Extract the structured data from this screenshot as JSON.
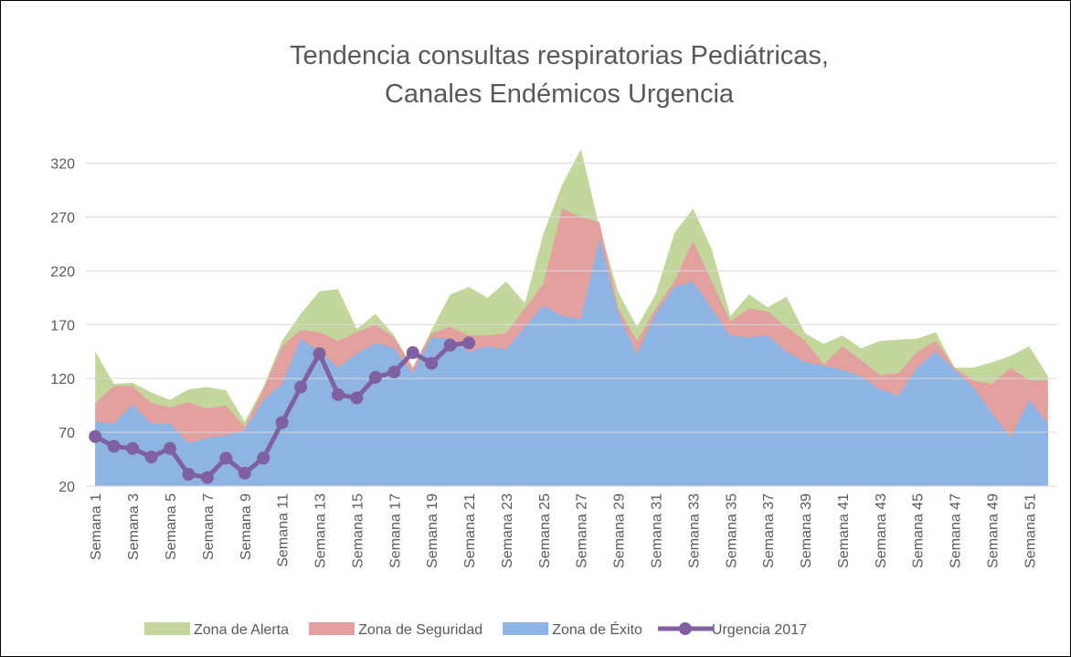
{
  "chart_data": {
    "type": "area",
    "title": [
      "Tendencia consultas respiratorias Pediátricas,",
      "Canales Endémicos Urgencia"
    ],
    "categories": [
      "Semana 1",
      null,
      "Semana 3",
      null,
      "Semana 5",
      null,
      "Semana 7",
      null,
      "Semana 9",
      null,
      "Semana 11",
      null,
      "Semana 13",
      null,
      "Semana 15",
      null,
      "Semana 17",
      null,
      "Semana 19",
      null,
      "Semana 21",
      null,
      "Semana 23",
      null,
      "Semana 25",
      null,
      "Semana 27",
      null,
      "Semana 29",
      null,
      "Semana 31",
      null,
      "Semana 33",
      null,
      "Semana 35",
      null,
      "Semana 37",
      null,
      "Semana 39",
      null,
      "Semana 41",
      null,
      "Semana 43",
      null,
      "Semana 45",
      null,
      "Semana 47",
      null,
      "Semana 49",
      null,
      "Semana 51",
      null
    ],
    "series": [
      {
        "name": "Zona de Alerta",
        "color": "#c3d69b",
        "kind": "area",
        "values": [
          145,
          115,
          116,
          107,
          100,
          110,
          112,
          109,
          80,
          112,
          155,
          180,
          201,
          203,
          166,
          180,
          160,
          130,
          165,
          198,
          205,
          195,
          210,
          190,
          255,
          300,
          333,
          260,
          200,
          168,
          198,
          255,
          278,
          240,
          178,
          198,
          186,
          196,
          162,
          152,
          160,
          148,
          155,
          156,
          157,
          163,
          130,
          130,
          135,
          141,
          150,
          122
        ]
      },
      {
        "name": "Zona de Seguridad",
        "color": "#e2a09e",
        "kind": "area",
        "values": [
          97,
          113,
          113,
          97,
          93,
          98,
          92,
          95,
          75,
          110,
          150,
          165,
          163,
          155,
          163,
          170,
          158,
          130,
          162,
          168,
          160,
          160,
          162,
          185,
          208,
          278,
          270,
          265,
          185,
          155,
          185,
          210,
          248,
          210,
          173,
          185,
          182,
          168,
          155,
          133,
          150,
          137,
          123,
          125,
          145,
          155,
          130,
          118,
          115,
          130,
          118,
          118
        ]
      },
      {
        "name": "Zona de Éxito",
        "color": "#8eb4e3",
        "kind": "area",
        "values": [
          80,
          78,
          96,
          78,
          78,
          60,
          65,
          67,
          72,
          100,
          115,
          157,
          145,
          130,
          143,
          153,
          148,
          125,
          158,
          157,
          145,
          150,
          147,
          168,
          188,
          178,
          175,
          250,
          180,
          143,
          180,
          205,
          210,
          185,
          160,
          158,
          160,
          145,
          135,
          132,
          128,
          122,
          110,
          104,
          130,
          145,
          128,
          112,
          88,
          65,
          100,
          78
        ]
      },
      {
        "name": "Urgencia 2017",
        "color": "#7f60a0",
        "kind": "line",
        "values": [
          66,
          57,
          55,
          47,
          55,
          31,
          28,
          46,
          32,
          46,
          79,
          112,
          143,
          105,
          102,
          121,
          126,
          144,
          134,
          151,
          153,
          null,
          null,
          null,
          null,
          null,
          null,
          null,
          null,
          null,
          null,
          null,
          null,
          null,
          null,
          null,
          null,
          null,
          null,
          null,
          null,
          null,
          null,
          null,
          null,
          null,
          null,
          null,
          null,
          null,
          null,
          null
        ]
      }
    ],
    "ylim": [
      20,
      340
    ],
    "yticks": [
      20,
      70,
      120,
      170,
      220,
      270,
      320
    ],
    "grid": true,
    "legend": "bottom"
  }
}
